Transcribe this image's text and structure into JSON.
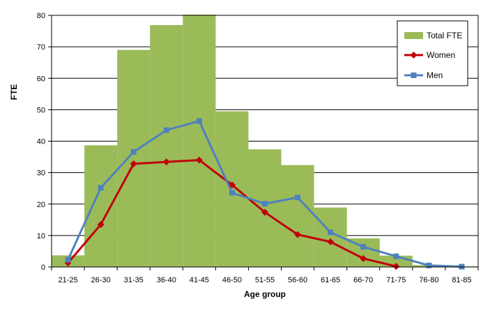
{
  "chart_data": {
    "type": "bar",
    "xlabel": "Age group",
    "ylabel": "FTE",
    "ylim": [
      0,
      80
    ],
    "yticks": [
      0,
      10,
      20,
      30,
      40,
      50,
      60,
      70,
      80
    ],
    "grid": true,
    "legend_position": "top-right",
    "categories": [
      "21-25",
      "26-30",
      "31-35",
      "36-40",
      "41-45",
      "46-50",
      "51-55",
      "56-60",
      "61-65",
      "66-70",
      "71-75",
      "76-80",
      "81-85"
    ],
    "series": [
      {
        "name": "Total FTE",
        "type": "bar",
        "color": "#9bbb59",
        "values": [
          3.7,
          38.7,
          69.0,
          76.9,
          80.2,
          49.5,
          37.4,
          32.4,
          18.9,
          9.1,
          3.6,
          0.6,
          0.2
        ]
      },
      {
        "name": "Women",
        "type": "line",
        "marker": "diamond",
        "color": "#c0000a",
        "values": [
          1.3,
          13.5,
          32.8,
          33.4,
          34.0,
          26.1,
          17.4,
          10.3,
          8.0,
          2.7,
          0.2,
          null,
          null
        ]
      },
      {
        "name": "Men",
        "type": "line",
        "marker": "square",
        "color": "#4f81bd",
        "values": [
          2.3,
          25.2,
          36.6,
          43.5,
          46.4,
          23.6,
          20.1,
          22.1,
          11.0,
          6.4,
          3.4,
          0.5,
          0.1
        ]
      }
    ]
  }
}
